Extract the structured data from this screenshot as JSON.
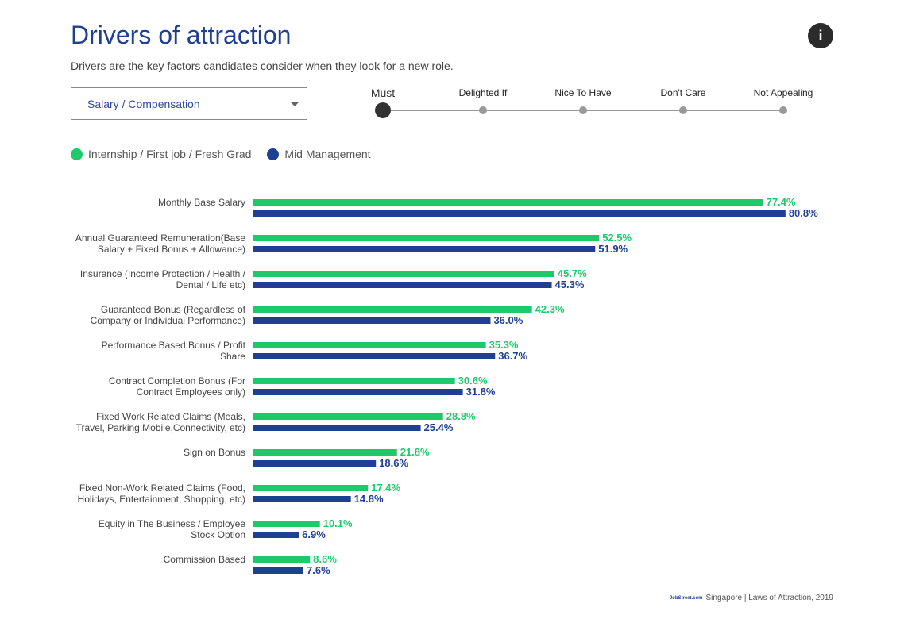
{
  "header": {
    "title": "Drivers of attraction",
    "subtitle": "Drivers are the key factors candidates consider when they look for a new role.",
    "info_icon": "info-icon",
    "info_label": "i"
  },
  "filter": {
    "selected": "Salary / Compensation"
  },
  "scale": {
    "stops": [
      "Must",
      "Delighted If",
      "Nice To Have",
      "Don't Care",
      "Not Appealing"
    ],
    "active_index": 0
  },
  "colors": {
    "series_1": "#1ec96b",
    "series_2": "#1f3f93",
    "title": "#1f3f93"
  },
  "footer": {
    "logo_text": "JobStreet.com",
    "source": "Singapore | Laws of Attraction, 2019"
  },
  "chart_data": {
    "type": "bar",
    "orientation": "horizontal",
    "title": "Drivers of attraction",
    "xlabel": "",
    "ylabel": "",
    "xlim": [
      0,
      100
    ],
    "grid": false,
    "legend_position": "top-left",
    "categories": [
      [
        "Monthly Base Salary"
      ],
      [
        "Annual Guaranteed Remuneration(Base",
        "Salary + Fixed Bonus + Allowance)"
      ],
      [
        "Insurance (Income Protection / Health /",
        "Dental / Life etc)"
      ],
      [
        "Guaranteed Bonus (Regardless of",
        "Company or Individual Performance)"
      ],
      [
        "Performance Based Bonus / Profit",
        "Share"
      ],
      [
        "Contract Completion Bonus (For",
        "Contract Employees only)"
      ],
      [
        "Fixed Work Related Claims (Meals,",
        "Travel, Parking,Mobile,Connectivity, etc)"
      ],
      [
        "Sign on Bonus"
      ],
      [
        "Fixed Non-Work Related Claims (Food,",
        "Holidays, Entertainment, Shopping, etc)"
      ],
      [
        "Equity in The Business / Employee",
        "Stock Option"
      ],
      [
        "Commission Based"
      ]
    ],
    "series": [
      {
        "name": "Internship / First job / Fresh Grad",
        "color": "#1ec96b",
        "values": [
          77.4,
          52.5,
          45.7,
          42.3,
          35.3,
          30.6,
          28.8,
          21.8,
          17.4,
          10.1,
          8.6
        ]
      },
      {
        "name": "Mid Management",
        "color": "#1f3f93",
        "values": [
          80.8,
          51.9,
          45.3,
          36.0,
          36.7,
          31.8,
          25.4,
          18.6,
          14.8,
          6.9,
          7.6
        ]
      }
    ],
    "value_suffix": "%"
  }
}
